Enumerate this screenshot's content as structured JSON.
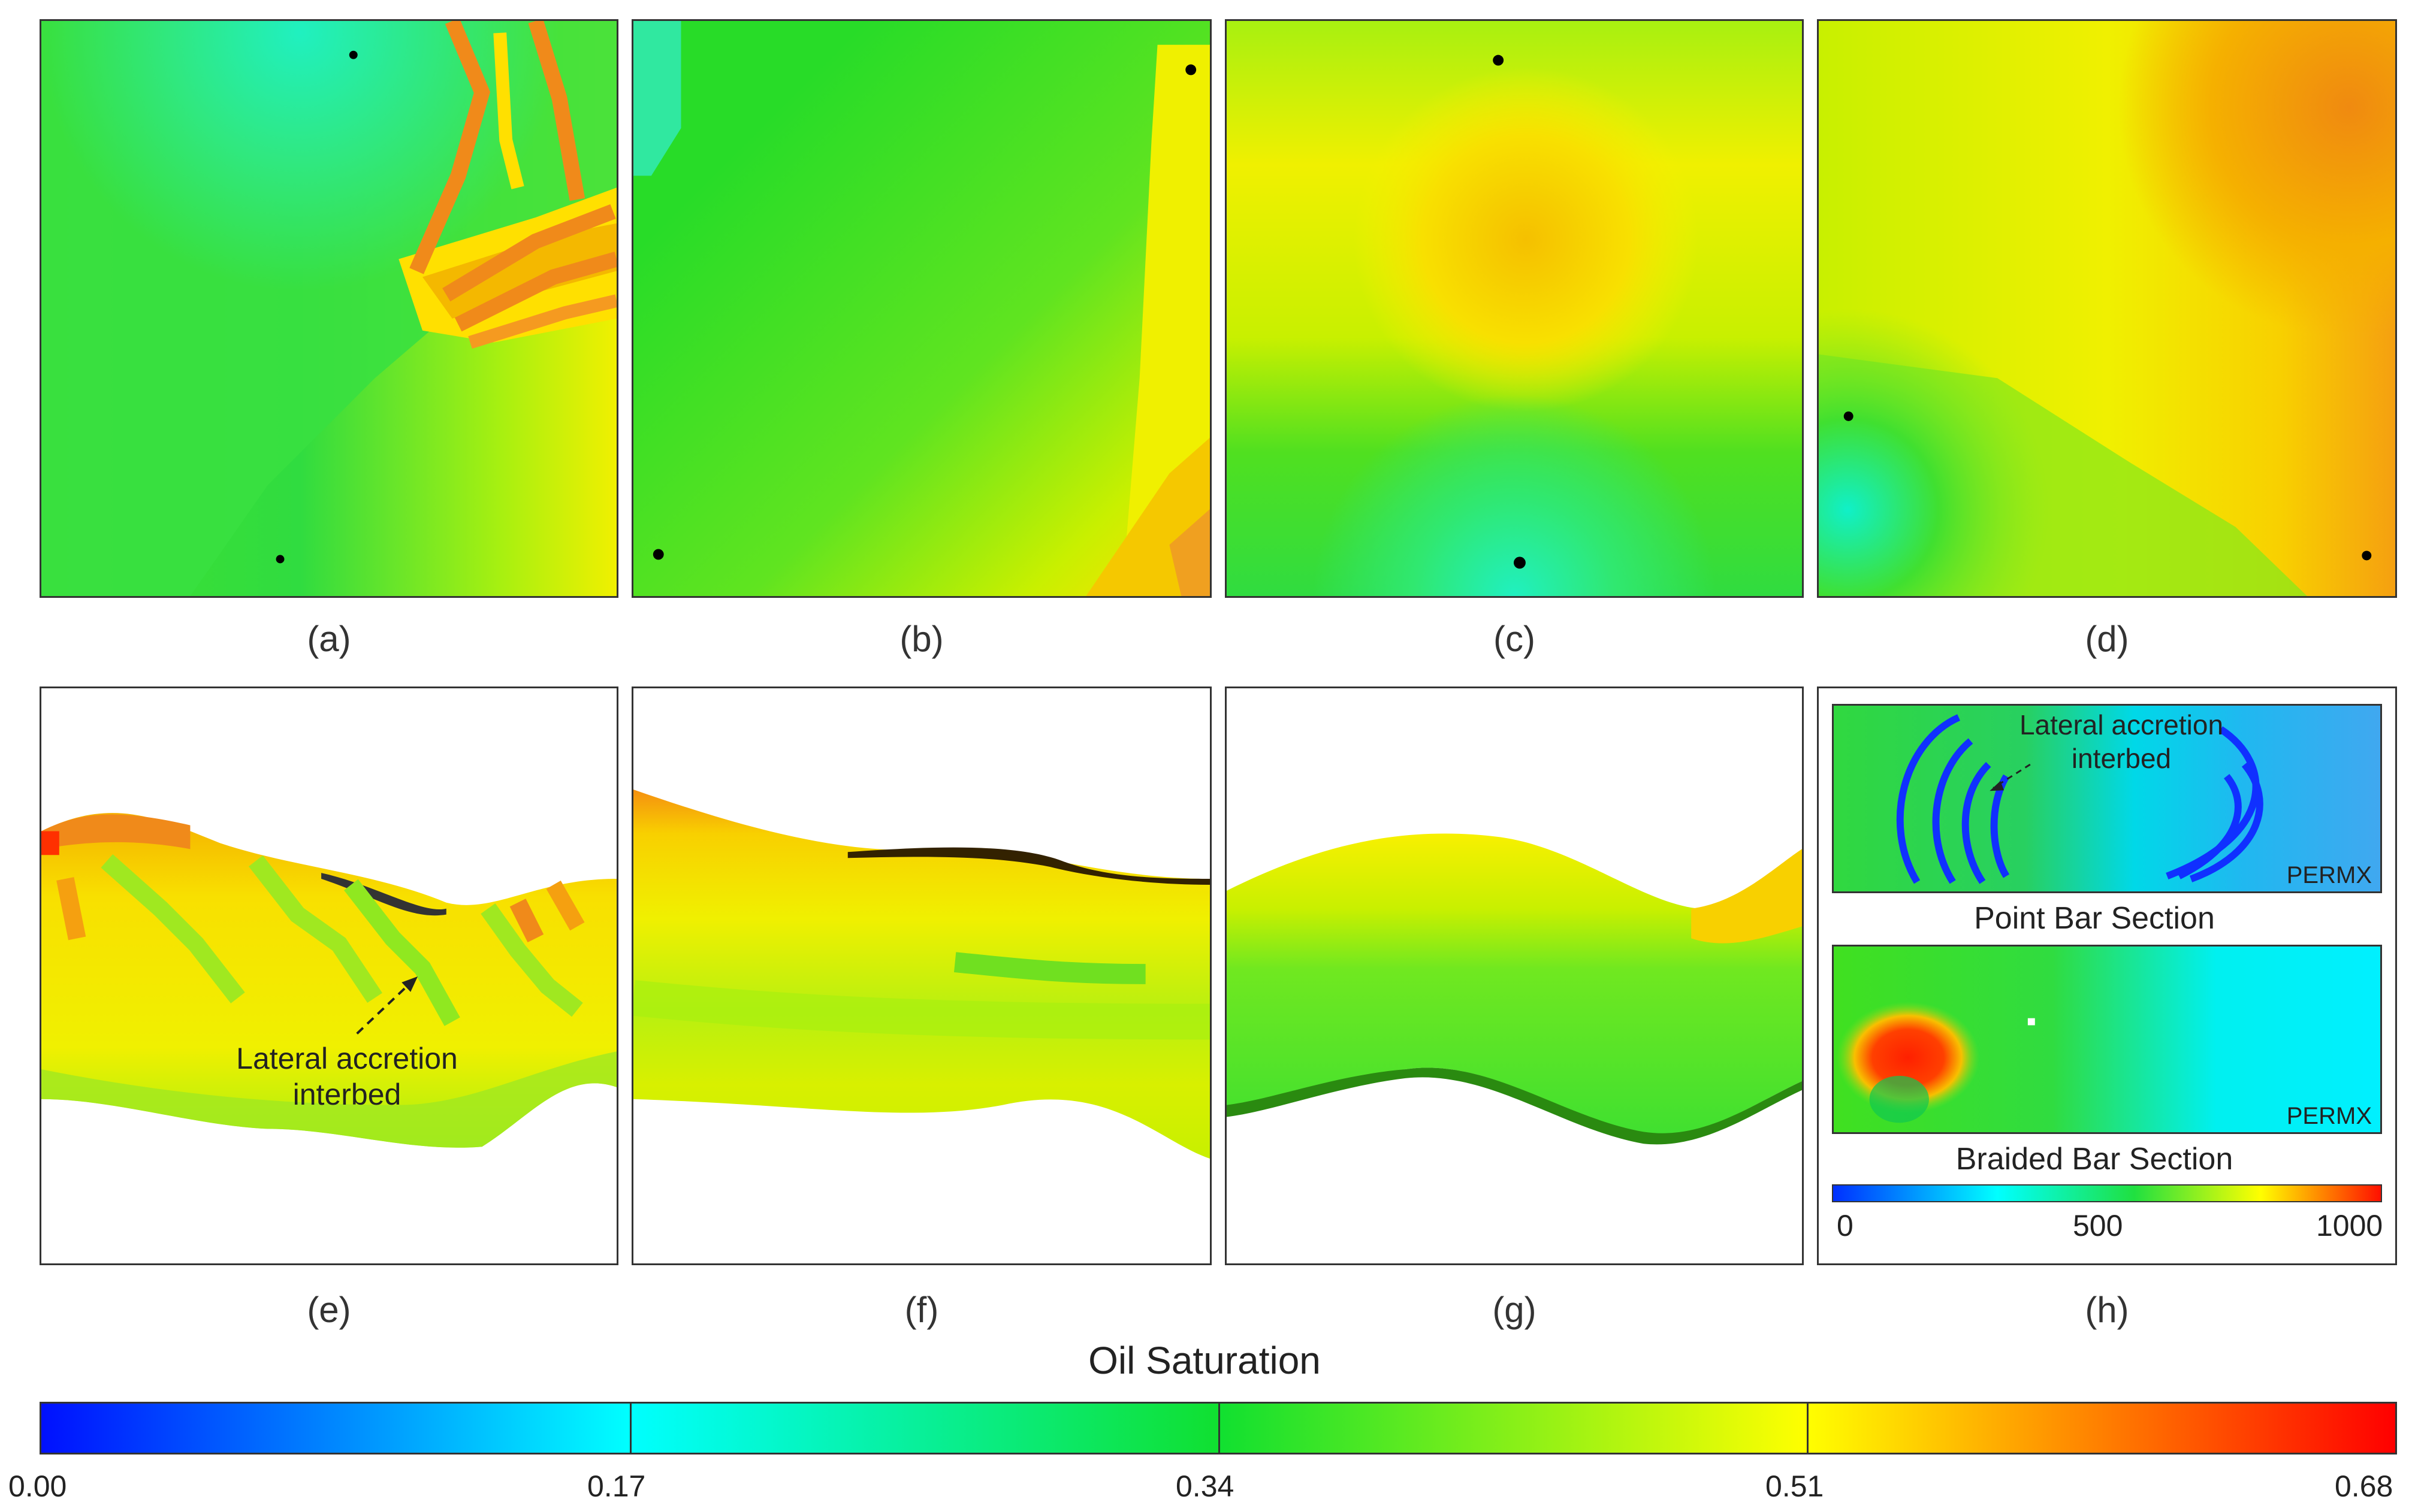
{
  "colors": {
    "blue": "#0010ff",
    "cyan": "#00ffff",
    "green": "#20e020",
    "yellow": "#ffff00",
    "red": "#ff0000",
    "orange": "#f08a1a"
  },
  "panels": {
    "a": {
      "label": "(a)"
    },
    "b": {
      "label": "(b)"
    },
    "c": {
      "label": "(c)"
    },
    "d": {
      "label": "(d)"
    },
    "e": {
      "label": "(e)",
      "annotation_line1": "Lateral accretion",
      "annotation_line2": "interbed"
    },
    "f": {
      "label": "(f)"
    },
    "g": {
      "label": "(g)"
    },
    "h": {
      "label": "(h)",
      "annotation_line1": "Lateral accretion",
      "annotation_line2": "interbed",
      "property_top": "PERMX",
      "property_bottom": "PERMX",
      "caption_top": "Point Bar Section",
      "caption_bottom": "Braided Bar Section",
      "permx_colorbar": {
        "min": 0,
        "max": 1000,
        "ticks": [
          "0",
          "500",
          "1000"
        ]
      }
    }
  },
  "colorbar": {
    "title": "Oil Saturation",
    "min": 0.0,
    "max": 0.68,
    "ticks": [
      "0.00",
      "0.17",
      "0.34",
      "0.51",
      "0.68"
    ]
  }
}
